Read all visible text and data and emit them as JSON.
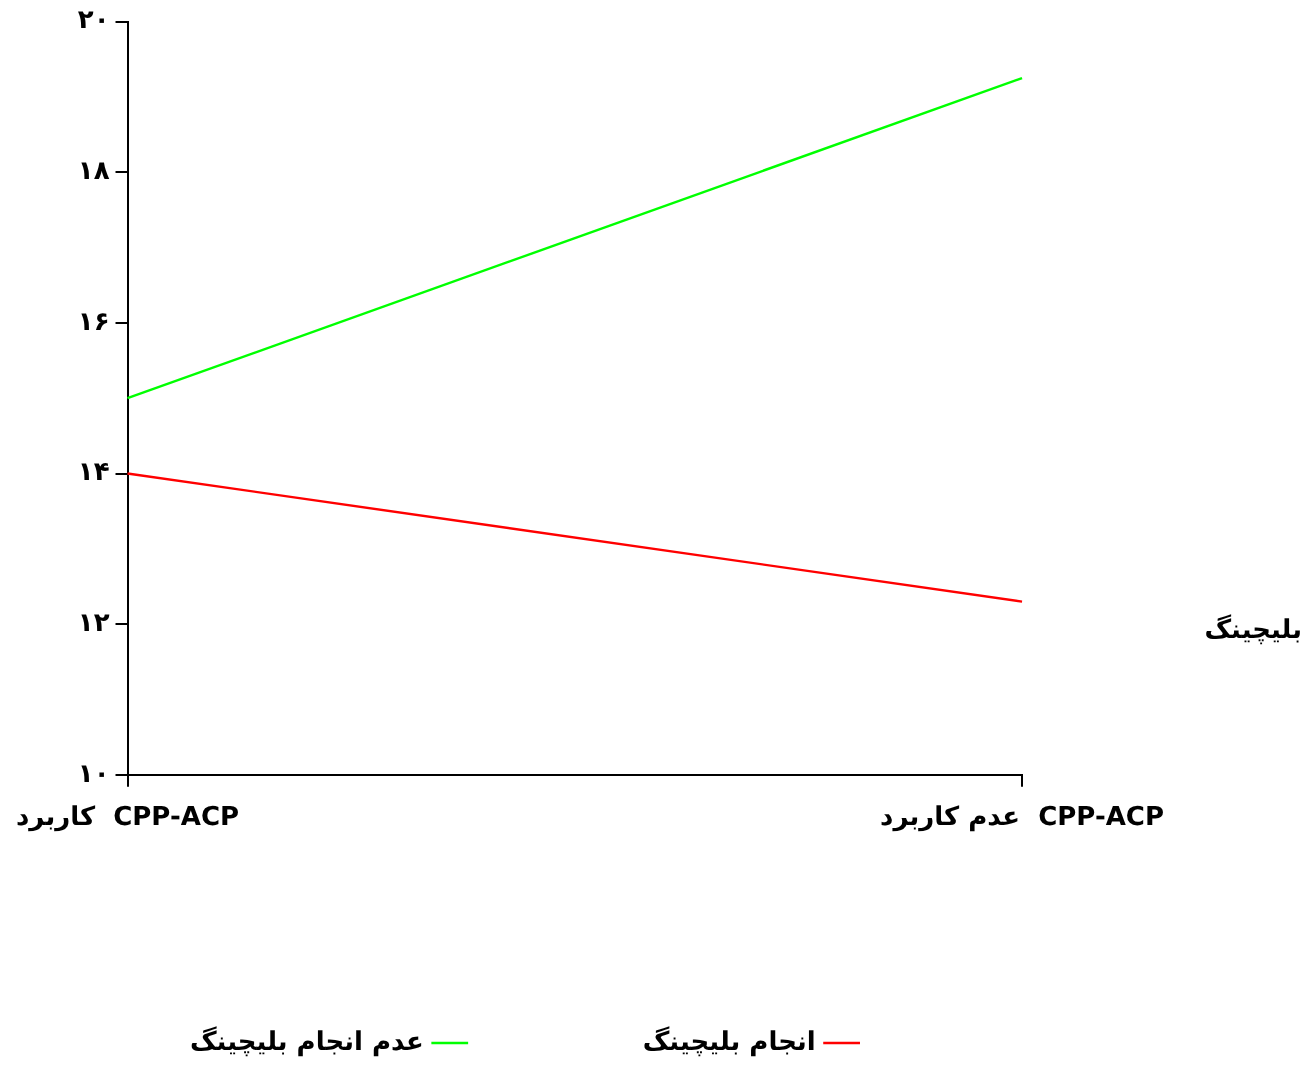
{
  "chart_data": {
    "type": "line",
    "categories": [
      "کاربرد  CPP-ACP",
      "عدم کاربرد  CPP-ACP"
    ],
    "series": [
      {
        "name": "انجام بلیچینگ",
        "color": "#ff0000",
        "values": [
          14.0,
          12.3
        ]
      },
      {
        "name": "عدم انجام بلیچینگ",
        "color": "#00ff00",
        "values": [
          15.0,
          19.25
        ]
      }
    ],
    "ylim": [
      10,
      20
    ],
    "yticks": [
      {
        "value": 10,
        "label": "۱۰"
      },
      {
        "value": 12,
        "label": "۱۲"
      },
      {
        "value": 14,
        "label": "۱۴"
      },
      {
        "value": 16,
        "label": "۱۶"
      },
      {
        "value": 18,
        "label": "۱۸"
      },
      {
        "value": 20,
        "label": "۲۰"
      }
    ],
    "legend_title": "بلیچینگ",
    "legend": "bottom",
    "grid": false,
    "marker": "none",
    "line_style": "solid"
  }
}
